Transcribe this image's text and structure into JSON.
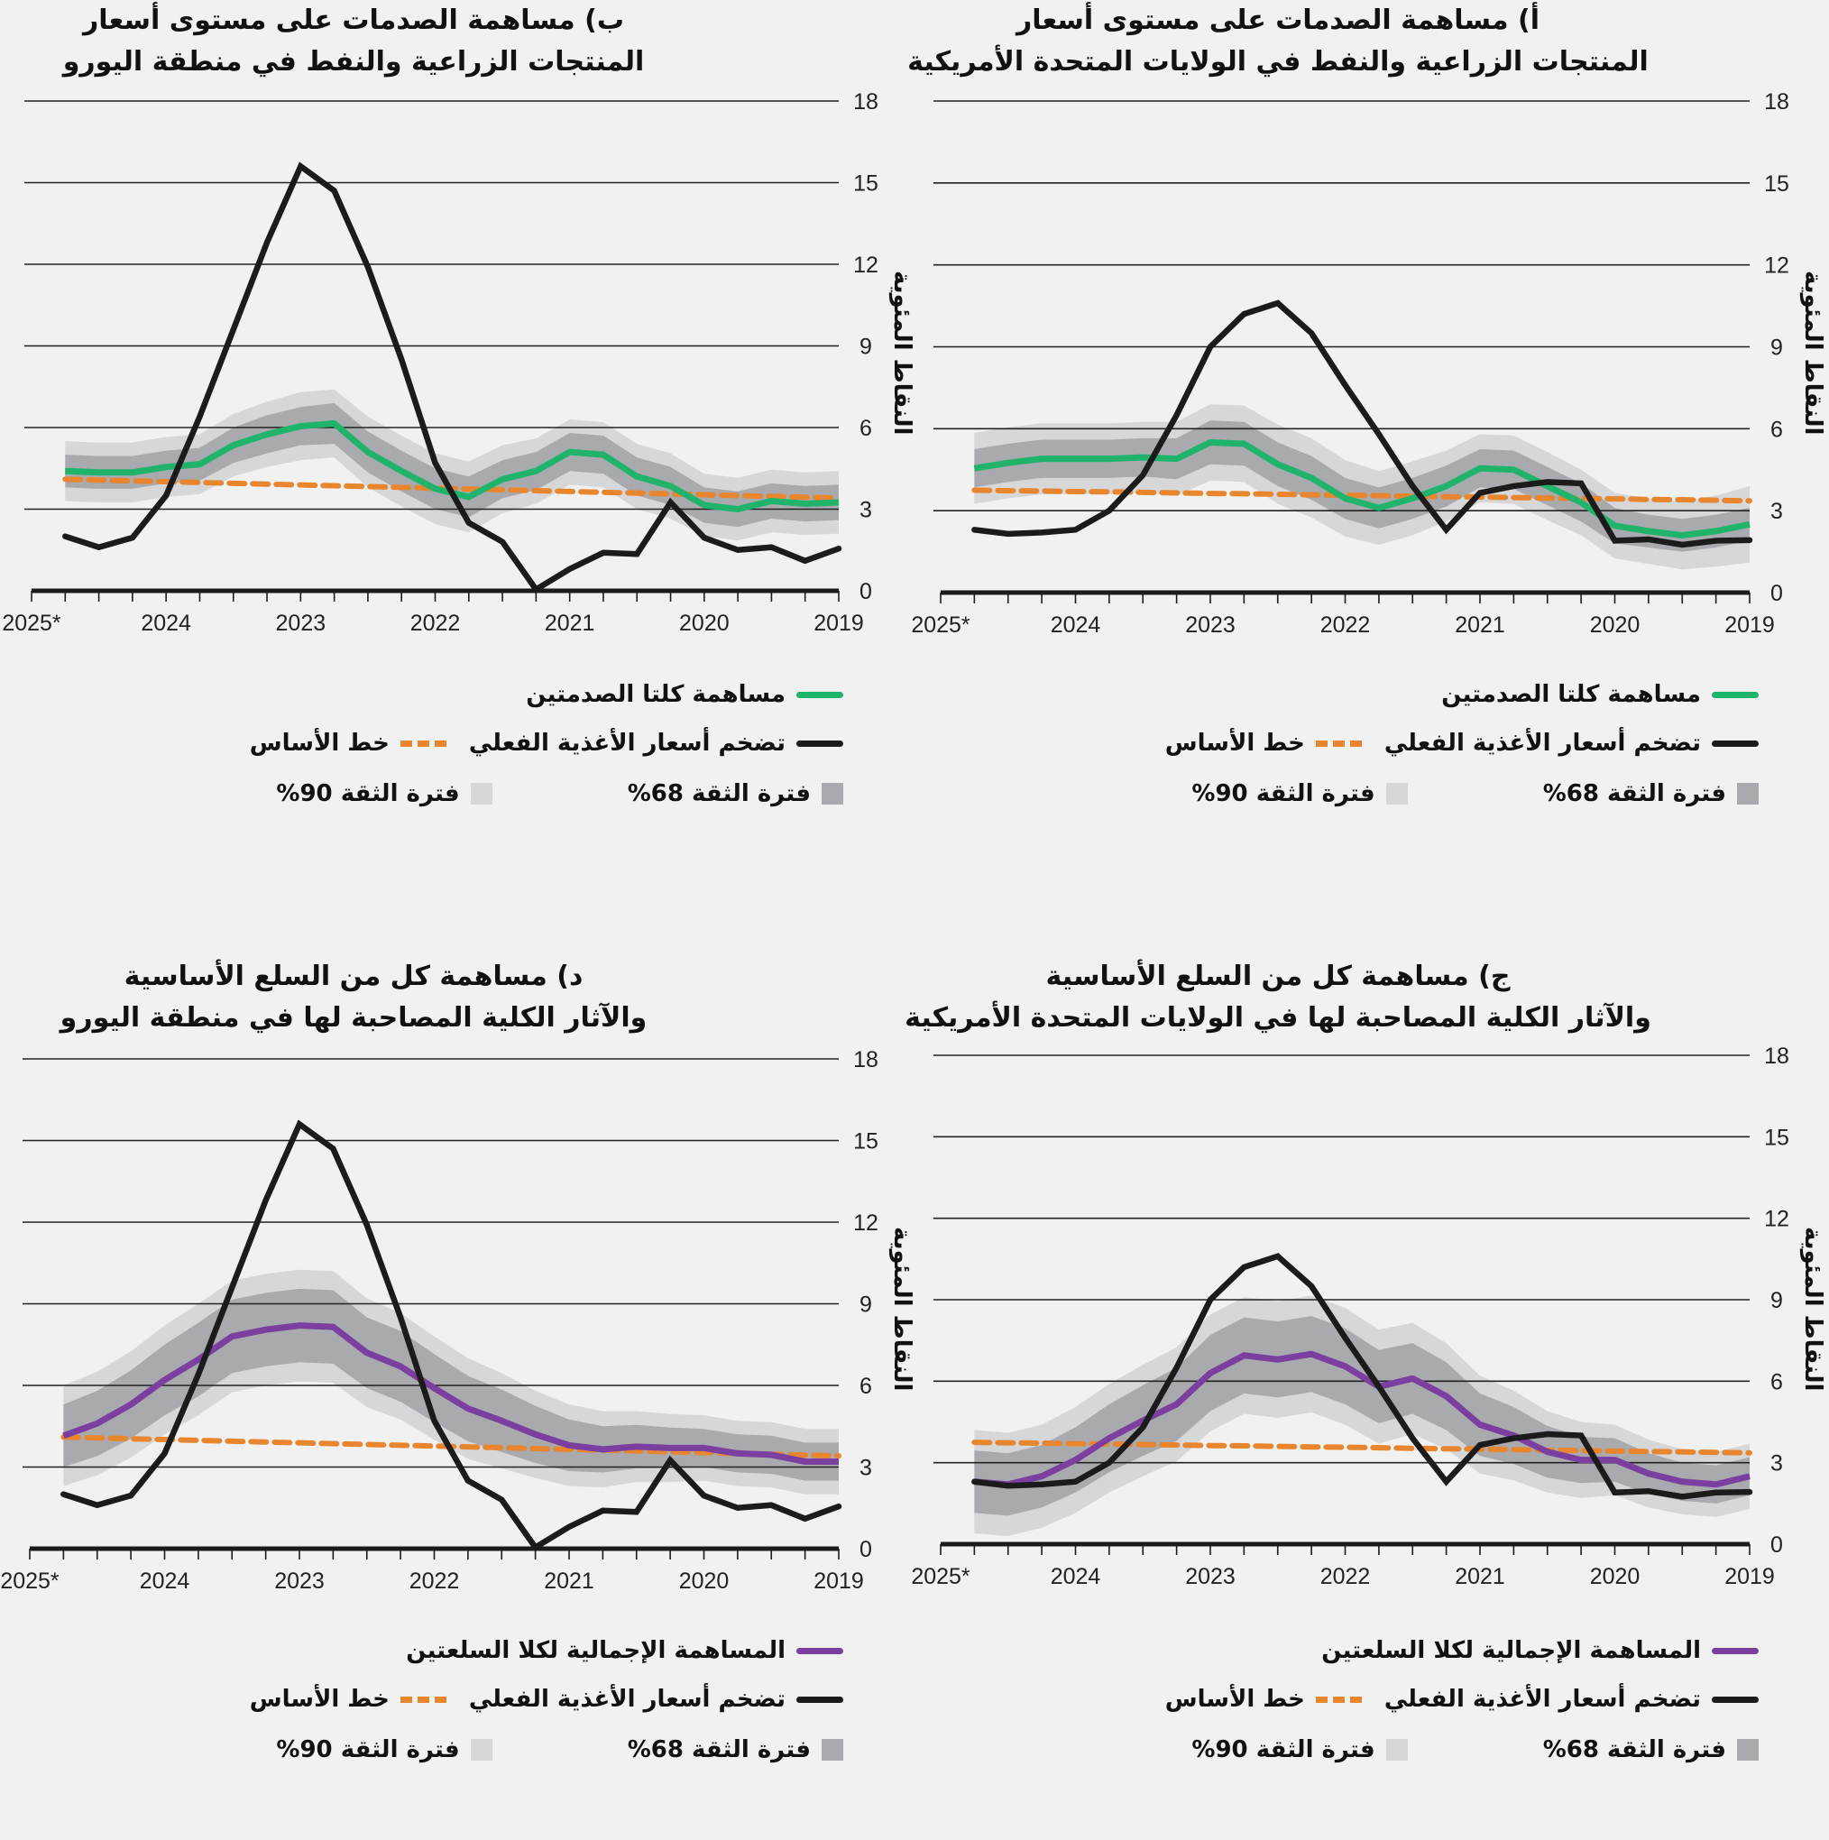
{
  "y_axis_label": "النقاط المئوية",
  "legend_common": {
    "actual": "تضخم أسعار الأغذية الفعلي",
    "baseline": "خط الأساس",
    "ci68": "فترة الثقة 68%",
    "ci90": "فترة الثقة 90%"
  },
  "colors": {
    "green": "#1fb36b",
    "purple": "#7b3fa0",
    "black": "#1b1b1b",
    "orange": "#e8862f",
    "ci68": "#a9aaad",
    "ci90": "#d6d7d9",
    "grid": "#222222",
    "background": "#f1f1f1"
  },
  "chart_data": [
    {
      "id": "a",
      "type": "line",
      "title_line1": "أ) مساهمة الصدمات على مستوى أسعار",
      "title_line2": "المنتجات الزراعية والنفط في الولايات المتحدة الأمريكية",
      "ylabel": "النقاط المئوية",
      "yticks": [
        0,
        3,
        6,
        9,
        12,
        15,
        18
      ],
      "ylim": [
        0,
        18
      ],
      "x_direction": "right-to-left",
      "xtick_labels": [
        "2025*",
        "2024",
        "2023",
        "2022",
        "2021",
        "2020",
        "2019"
      ],
      "quarters_per_year": 4,
      "legend_main": "مساهمة كلتا الصدمتين",
      "main_color": "green",
      "series": [
        {
          "name": "مساهمة كلتا الصدمتين",
          "values": [
            4.55,
            4.75,
            4.9,
            4.9,
            4.9,
            4.95,
            4.9,
            5.5,
            5.45,
            4.7,
            4.2,
            3.45,
            3.1,
            3.45,
            3.9,
            4.55,
            4.5,
            3.9,
            3.3,
            2.45,
            2.25,
            2.1,
            2.25,
            2.5
          ]
        },
        {
          "name": "تضخم أسعار الأغذية الفعلي",
          "values": [
            2.3,
            2.15,
            2.2,
            2.3,
            3.0,
            4.3,
            6.5,
            9.0,
            10.2,
            10.6,
            9.5,
            7.6,
            5.8,
            3.9,
            2.3,
            3.65,
            3.9,
            4.05,
            4.0,
            1.9,
            1.95,
            1.75,
            1.9,
            1.92
          ]
        },
        {
          "name": "خط الأساس",
          "values": [
            3.75,
            3.73,
            3.72,
            3.7,
            3.69,
            3.67,
            3.65,
            3.63,
            3.62,
            3.6,
            3.58,
            3.57,
            3.55,
            3.53,
            3.51,
            3.5,
            3.48,
            3.46,
            3.45,
            3.43,
            3.41,
            3.4,
            3.38,
            3.36
          ]
        }
      ],
      "ci68_halfwidth": [
        0.7,
        0.7,
        0.7,
        0.7,
        0.7,
        0.7,
        0.75,
        0.8,
        0.8,
        0.8,
        0.8,
        0.75,
        0.75,
        0.75,
        0.75,
        0.7,
        0.7,
        0.7,
        0.7,
        0.65,
        0.6,
        0.6,
        0.6,
        0.6
      ],
      "ci90_halfwidth": [
        1.3,
        1.3,
        1.3,
        1.3,
        1.3,
        1.3,
        1.35,
        1.4,
        1.4,
        1.45,
        1.45,
        1.4,
        1.35,
        1.35,
        1.3,
        1.25,
        1.25,
        1.25,
        1.2,
        1.2,
        1.2,
        1.25,
        1.3,
        1.4
      ]
    },
    {
      "id": "b",
      "type": "line",
      "title_line1": "ب) مساهمة الصدمات على مستوى أسعار",
      "title_line2": "المنتجات الزراعية والنفط في منطقة اليورو",
      "ylabel": "النقاط المئوية",
      "yticks": [
        0,
        3,
        6,
        9,
        12,
        15,
        18
      ],
      "ylim": [
        0,
        18
      ],
      "x_direction": "right-to-left",
      "xtick_labels": [
        "2025*",
        "2024",
        "2023",
        "2022",
        "2021",
        "2020",
        "2019"
      ],
      "quarters_per_year": 4,
      "legend_main": "مساهمة كلتا الصدمتين",
      "main_color": "green",
      "series": [
        {
          "name": "مساهمة كلتا الصدمتين",
          "values": [
            4.4,
            4.35,
            4.35,
            4.55,
            4.65,
            5.35,
            5.75,
            6.05,
            6.15,
            5.1,
            4.4,
            3.75,
            3.45,
            4.1,
            4.4,
            5.1,
            5.0,
            4.2,
            3.85,
            3.15,
            3.0,
            3.3,
            3.2,
            3.25
          ]
        },
        {
          "name": "تضخم أسعار الأغذية الفعلي",
          "values": [
            2.0,
            1.6,
            1.95,
            3.5,
            6.4,
            9.6,
            12.8,
            15.6,
            14.7,
            11.9,
            8.5,
            4.7,
            2.5,
            1.8,
            0.05,
            0.8,
            1.4,
            1.35,
            3.25,
            1.95,
            1.5,
            1.6,
            1.1,
            1.55
          ]
        },
        {
          "name": "خط الأساس",
          "values": [
            4.1,
            4.07,
            4.04,
            4.01,
            3.98,
            3.95,
            3.92,
            3.89,
            3.86,
            3.83,
            3.8,
            3.77,
            3.74,
            3.71,
            3.68,
            3.65,
            3.62,
            3.59,
            3.56,
            3.53,
            3.5,
            3.47,
            3.44,
            3.41
          ]
        }
      ],
      "ci68_halfwidth": [
        0.6,
        0.6,
        0.6,
        0.6,
        0.6,
        0.65,
        0.7,
        0.7,
        0.75,
        0.75,
        0.75,
        0.75,
        0.75,
        0.7,
        0.7,
        0.7,
        0.7,
        0.7,
        0.7,
        0.65,
        0.65,
        0.65,
        0.65,
        0.65
      ],
      "ci90_halfwidth": [
        1.1,
        1.1,
        1.1,
        1.1,
        1.1,
        1.15,
        1.2,
        1.25,
        1.25,
        1.3,
        1.3,
        1.3,
        1.3,
        1.25,
        1.2,
        1.2,
        1.2,
        1.2,
        1.2,
        1.15,
        1.15,
        1.15,
        1.15,
        1.15
      ]
    },
    {
      "id": "c",
      "type": "line",
      "title_line1": "ج) مساهمة كل من السلع الأساسية",
      "title_line2": "والآثار الكلية المصاحبة لها في الولايات المتحدة الأمريكية",
      "ylabel": "النقاط المئوية",
      "yticks": [
        0,
        3,
        6,
        9,
        12,
        15,
        18
      ],
      "ylim": [
        0,
        18
      ],
      "x_direction": "right-to-left",
      "xtick_labels": [
        "2025*",
        "2024",
        "2023",
        "2022",
        "2021",
        "2020",
        "2019"
      ],
      "quarters_per_year": 4,
      "legend_main": "المساهمة الإجمالية لكلا السلعتين",
      "main_color": "purple",
      "series": [
        {
          "name": "المساهمة الإجمالية لكلا السلعتين",
          "values": [
            2.3,
            2.2,
            2.5,
            3.1,
            3.9,
            4.55,
            5.15,
            6.3,
            6.95,
            6.8,
            7.0,
            6.55,
            5.8,
            6.1,
            5.45,
            4.4,
            4.0,
            3.4,
            3.1,
            3.1,
            2.6,
            2.3,
            2.2,
            2.5
          ]
        },
        {
          "name": "تضخم أسعار الأغذية الفعلي",
          "values": [
            2.3,
            2.15,
            2.2,
            2.3,
            3.0,
            4.3,
            6.5,
            9.0,
            10.2,
            10.6,
            9.5,
            7.6,
            5.8,
            3.9,
            2.3,
            3.65,
            3.9,
            4.05,
            4.0,
            1.9,
            1.95,
            1.75,
            1.9,
            1.92
          ]
        },
        {
          "name": "خط الأساس",
          "values": [
            3.75,
            3.73,
            3.72,
            3.7,
            3.69,
            3.67,
            3.65,
            3.63,
            3.62,
            3.6,
            3.58,
            3.57,
            3.55,
            3.53,
            3.51,
            3.5,
            3.48,
            3.46,
            3.45,
            3.43,
            3.41,
            3.4,
            3.38,
            3.36
          ]
        }
      ],
      "ci68_halfwidth": [
        1.15,
        1.15,
        1.15,
        1.2,
        1.25,
        1.3,
        1.35,
        1.4,
        1.4,
        1.4,
        1.4,
        1.4,
        1.35,
        1.3,
        1.25,
        1.15,
        1.05,
        0.95,
        0.85,
        0.8,
        0.75,
        0.7,
        0.7,
        0.7
      ],
      "ci90_halfwidth": [
        1.9,
        1.9,
        1.9,
        1.95,
        2.0,
        2.05,
        2.1,
        2.15,
        2.15,
        2.15,
        2.15,
        2.15,
        2.1,
        2.05,
        1.95,
        1.8,
        1.65,
        1.5,
        1.4,
        1.3,
        1.25,
        1.2,
        1.2,
        1.2
      ]
    },
    {
      "id": "d",
      "type": "line",
      "title_line1": "د) مساهمة كل من السلع الأساسية",
      "title_line2": "والآثار الكلية المصاحبة لها في منطقة اليورو",
      "ylabel": "النقاط المئوية",
      "yticks": [
        0,
        3,
        6,
        9,
        12,
        15,
        18
      ],
      "ylim": [
        0,
        18
      ],
      "x_direction": "right-to-left",
      "xtick_labels": [
        "2025*",
        "2024",
        "2023",
        "2022",
        "2021",
        "2020",
        "2019"
      ],
      "quarters_per_year": 4,
      "legend_main": "المساهمة الإجمالية لكلا السلعتين",
      "main_color": "purple",
      "series": [
        {
          "name": "المساهمة الإجمالية لكلا السلعتين",
          "values": [
            4.15,
            4.6,
            5.3,
            6.2,
            6.95,
            7.8,
            8.05,
            8.2,
            8.15,
            7.2,
            6.7,
            5.9,
            5.15,
            4.7,
            4.2,
            3.8,
            3.65,
            3.75,
            3.7,
            3.7,
            3.5,
            3.45,
            3.2,
            3.2
          ]
        },
        {
          "name": "تضخم أسعار الأغذية الفعلي",
          "values": [
            2.0,
            1.6,
            1.95,
            3.5,
            6.4,
            9.6,
            12.8,
            15.6,
            14.7,
            11.9,
            8.5,
            4.7,
            2.5,
            1.8,
            0.05,
            0.8,
            1.4,
            1.35,
            3.25,
            1.95,
            1.5,
            1.6,
            1.1,
            1.55
          ]
        },
        {
          "name": "خط الأساس",
          "values": [
            4.1,
            4.07,
            4.04,
            4.01,
            3.98,
            3.95,
            3.92,
            3.89,
            3.86,
            3.83,
            3.8,
            3.77,
            3.74,
            3.71,
            3.68,
            3.65,
            3.62,
            3.59,
            3.56,
            3.53,
            3.5,
            3.47,
            3.44,
            3.41
          ]
        }
      ],
      "ci68_halfwidth": [
        1.15,
        1.2,
        1.25,
        1.3,
        1.35,
        1.35,
        1.35,
        1.35,
        1.35,
        1.3,
        1.3,
        1.25,
        1.2,
        1.15,
        1.05,
        0.95,
        0.85,
        0.8,
        0.75,
        0.7,
        0.7,
        0.7,
        0.7,
        0.7
      ],
      "ci90_halfwidth": [
        1.85,
        1.9,
        1.95,
        2.0,
        2.05,
        2.05,
        2.05,
        2.05,
        2.05,
        2.0,
        1.95,
        1.9,
        1.85,
        1.75,
        1.6,
        1.5,
        1.4,
        1.3,
        1.25,
        1.2,
        1.2,
        1.2,
        1.2,
        1.2
      ]
    }
  ]
}
